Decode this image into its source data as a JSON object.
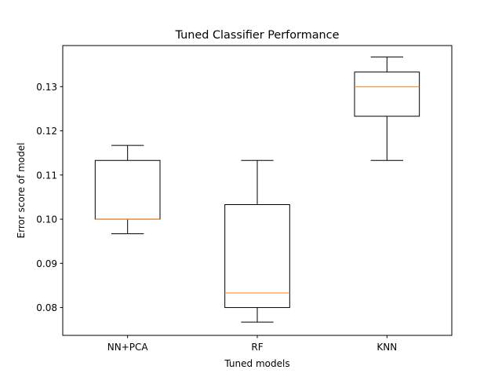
{
  "chart_data": {
    "type": "boxplot",
    "title": "Tuned Classifier Performance",
    "xlabel": "Tuned models",
    "ylabel": "Error score of model",
    "ylim": [
      0.0737,
      0.1393
    ],
    "yticks": [
      0.08,
      0.09,
      0.1,
      0.11,
      0.12,
      0.13
    ],
    "ytick_labels": [
      "0.08",
      "0.09",
      "0.10",
      "0.11",
      "0.12",
      "0.13"
    ],
    "grid": false,
    "categories": [
      "NN+PCA",
      "RF",
      "KNN"
    ],
    "boxes": [
      {
        "whisker_low": 0.0967,
        "q1": 0.1,
        "median": 0.1,
        "q3": 0.1133,
        "whisker_high": 0.1167
      },
      {
        "whisker_low": 0.0767,
        "q1": 0.08,
        "median": 0.0833,
        "q3": 0.1033,
        "whisker_high": 0.1133
      },
      {
        "whisker_low": 0.1133,
        "q1": 0.1233,
        "median": 0.13,
        "q3": 0.1333,
        "whisker_high": 0.1367
      }
    ],
    "colors": {
      "box": "#000000",
      "median": "#ff7f0e",
      "axes": "#000000"
    }
  }
}
